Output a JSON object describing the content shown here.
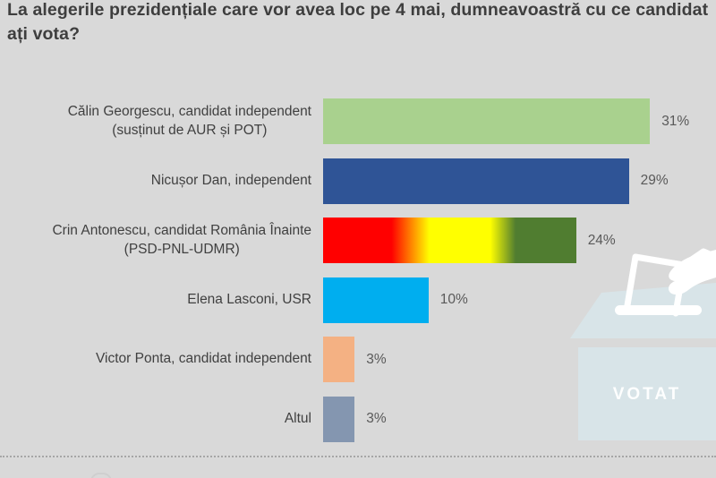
{
  "title": "La alegerile prezidențiale care vor avea loc pe 4 mai, dumneavoastră cu ce candidat ați vota?",
  "chart_data": {
    "type": "bar",
    "orientation": "horizontal",
    "unit": "%",
    "title": "La alegerile prezidențiale care vor avea loc pe 4 mai, dumneavoastră cu ce candidat ați vota?",
    "categories": [
      [
        "Călin Georgescu, candidat independent",
        "(susținut de AUR și POT)"
      ],
      [
        "Nicușor Dan, independent"
      ],
      [
        "Crin Antonescu, candidat România Înainte",
        "(PSD-PNL-UDMR)"
      ],
      [
        "Elena Lasconi, USR"
      ],
      [
        "Victor Ponta, candidat independent"
      ],
      [
        "Altul"
      ]
    ],
    "values": [
      31,
      29,
      24,
      10,
      3,
      3
    ],
    "value_labels": [
      "31%",
      "29%",
      "24%",
      "10%",
      "3%",
      "3%"
    ],
    "bar_fills": [
      "#a9d18e",
      "#2f5496",
      "linear-gradient(90deg, #ff0000 0%, #ff0000 27%, #ffff00 42%, #ffff00 66%, #507d30 76%, #507d30 100%)",
      "#00aeef",
      "#f4b183",
      "#8496b0"
    ],
    "xlim": [
      0,
      34
    ],
    "xlabel": "",
    "ylabel": "",
    "grid": false,
    "legend": false
  },
  "ballot_box": {
    "label": "VOTAT"
  },
  "colors": {
    "background": "#d9d9d9",
    "title_text": "#3e3e3e",
    "label_text": "#404040",
    "value_text": "#595959",
    "box_fill": "#d8e4e8",
    "box_art": "#ffffff"
  }
}
